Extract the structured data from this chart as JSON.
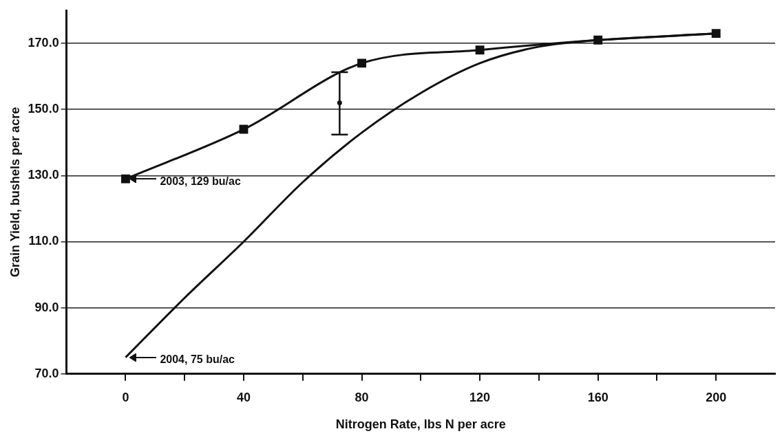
{
  "chart_data": {
    "type": "line",
    "xlabel": "Nitrogen Rate, lbs N per acre",
    "ylabel": "Grain Yield, bushels per acre",
    "xlim": [
      -20,
      220
    ],
    "xticks": [
      0,
      {
        "value": 20,
        "label": null
      },
      40,
      {
        "value": 60,
        "label": null
      },
      80,
      {
        "value": 100,
        "label": null
      },
      120,
      {
        "value": 140,
        "label": null
      },
      160,
      {
        "value": 180,
        "label": null
      },
      200
    ],
    "ylim": [
      70,
      180
    ],
    "yticks": [
      {
        "value": 70,
        "label": "70.0"
      },
      {
        "value": 90,
        "label": "90.0"
      },
      {
        "value": 110,
        "label": "110.0"
      },
      {
        "value": 130,
        "label": "130.0"
      },
      {
        "value": 150,
        "label": "150.0"
      },
      {
        "value": 170,
        "label": "170.0"
      }
    ],
    "grid": "y",
    "line_style": "solid",
    "series": [
      {
        "color": "#111111",
        "marker": "square",
        "x": [
          0,
          40,
          80,
          120,
          160,
          200
        ],
        "values": [
          129,
          144,
          164,
          168,
          171,
          173
        ]
      },
      {
        "color": "#111111",
        "marker": "none",
        "x": [
          0,
          20,
          40,
          60,
          80,
          100,
          120,
          140,
          160,
          180,
          200
        ],
        "values": [
          75,
          93,
          110,
          128,
          143,
          155,
          164,
          169,
          171,
          172,
          173
        ]
      },
      {
        "type": "scatter",
        "color": "#111111",
        "marker": "circle",
        "x": [
          72.5
        ],
        "values": [
          152
        ],
        "errors": [
          [
            142.4,
            161.3
          ]
        ]
      }
    ],
    "annotations": [
      "2003, 129 bu/ac",
      "2004, 75 bu/ac"
    ]
  }
}
